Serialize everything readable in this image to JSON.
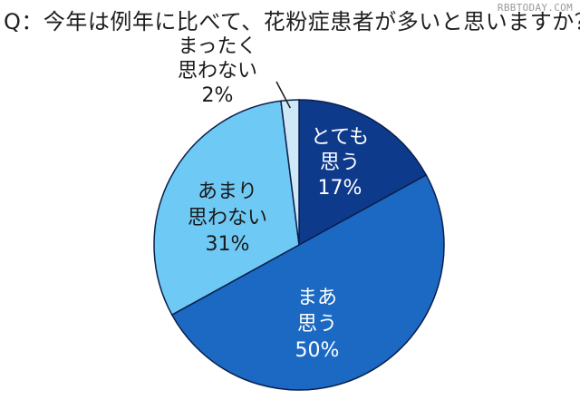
{
  "title": "Q：今年は例年に比べて、花粉症患者が多いと思いますか？",
  "watermark": "RBBTODAY.COM",
  "chart_data": {
    "type": "pie",
    "title": "Q：今年は例年に比べて、花粉症患者が多いと思いますか？",
    "start_angle_deg": 0,
    "direction": "clockwise",
    "slices": [
      {
        "label_lines": [
          "とても",
          "思う"
        ],
        "value": 17,
        "value_text": "17%",
        "color": "#0e3a8c",
        "text_color": "#ffffff"
      },
      {
        "label_lines": [
          "まあ",
          "思う"
        ],
        "value": 50,
        "value_text": "50%",
        "color": "#1b69c2",
        "text_color": "#ffffff"
      },
      {
        "label_lines": [
          "あまり",
          "思わない"
        ],
        "value": 31,
        "value_text": "31%",
        "color": "#6ec9f5",
        "text_color": "#1a1a1a"
      },
      {
        "label_lines": [
          "まったく",
          "思わない"
        ],
        "value": 2,
        "value_text": "2%",
        "color": "#cfe8f8",
        "text_color": "#1a1a1a"
      }
    ]
  }
}
